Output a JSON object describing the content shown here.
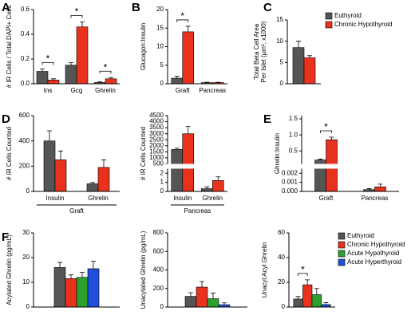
{
  "chart_data": [
    {
      "type": "bar",
      "panel": "A",
      "ylabel": "# IR Cells / Total DAPI+ Cells",
      "categories": [
        "Ins",
        "Gcg",
        "Ghrelin"
      ],
      "series": [
        {
          "color": "#555555",
          "values": [
            0.1,
            0.15,
            0.01
          ],
          "errors": [
            0.02,
            0.02,
            0.005
          ]
        },
        {
          "color": "#e8321e",
          "values": [
            0.03,
            0.46,
            0.04
          ],
          "errors": [
            0.01,
            0.04,
            0.01
          ]
        }
      ],
      "ylim": [
        0,
        0.6
      ],
      "yticks": [
        {
          "value": 0,
          "label": "0.0"
        },
        0.2,
        0.4,
        0.6
      ],
      "annotations": [
        "*",
        "*",
        "*"
      ]
    },
    {
      "type": "bar",
      "panel": "B",
      "ylabel": "Glucagon:Insulin",
      "categories": [
        "Graft",
        "Pancreas"
      ],
      "series": [
        {
          "color": "#555555",
          "values": [
            1.5,
            0.3
          ],
          "errors": [
            0.5,
            0.1
          ]
        },
        {
          "color": "#e8321e",
          "values": [
            14,
            0.3
          ],
          "errors": [
            1.5,
            0.1
          ]
        }
      ],
      "ylim": [
        0,
        20
      ],
      "yticks": [
        0,
        5,
        10,
        15,
        20
      ],
      "annotations": [
        "*"
      ]
    },
    {
      "type": "bar",
      "panel": "C",
      "ylabel": [
        "Total Beta Cell Area",
        "Per Islet (µm², x1000)"
      ],
      "categories": [
        null
      ],
      "series": [
        {
          "name": "Euthyroid",
          "color": "#555555",
          "values": [
            8.5
          ],
          "errors": [
            1.5
          ]
        },
        {
          "name": "Chronic Hypothyroid",
          "color": "#e8321e",
          "values": [
            6.1
          ],
          "errors": [
            0.5
          ]
        }
      ],
      "ylim": [
        0,
        15
      ],
      "yticks": [
        0,
        5,
        10,
        15
      ],
      "legend": "right"
    },
    {
      "type": "bar",
      "panel": "D",
      "ylabel": "# IR Cells Counted",
      "categories": [
        "Insulin",
        "Ghrelin"
      ],
      "group_label": "Graft",
      "series": [
        {
          "color": "#555555",
          "values": [
            400,
            60
          ],
          "errors": [
            80,
            10
          ]
        },
        {
          "color": "#e8321e",
          "values": [
            250,
            190
          ],
          "errors": [
            70,
            60
          ]
        }
      ],
      "ylim": [
        0,
        600
      ],
      "yticks": [
        0,
        200,
        400,
        600
      ]
    },
    {
      "type": "bar",
      "ylabel": "# IR Cells Counted",
      "categories": [
        "Insulin",
        "Ghrelin"
      ],
      "group_label": "Pancreas",
      "series": [
        {
          "color": "#555555",
          "values": [
            1700,
            0.3
          ],
          "errors": [
            100,
            0.2
          ]
        },
        {
          "color": "#e8321e",
          "values": [
            3000,
            1.2
          ],
          "errors": [
            600,
            0.4
          ]
        }
      ],
      "ylim": [
        0,
        4500
      ],
      "ybreak": [
        2.5,
        500
      ],
      "yticks": [
        0,
        1,
        2,
        500,
        1000,
        1500,
        2000,
        2500,
        3000,
        3500,
        4000,
        4500
      ]
    },
    {
      "type": "bar",
      "panel": "E",
      "ylabel": "Ghrelin:Insulin",
      "categories": [
        "Graft",
        "Pancreas"
      ],
      "series": [
        {
          "color": "#555555",
          "values": [
            0.22,
            0.0002
          ],
          "errors": [
            0.03,
            0.0001
          ]
        },
        {
          "color": "#e8321e",
          "values": [
            0.85,
            0.0005
          ],
          "errors": [
            0.08,
            0.0003
          ]
        }
      ],
      "ylim": [
        0,
        1.6
      ],
      "ybreak": [
        0.0025,
        0.1
      ],
      "yticks": [
        {
          "value": 0,
          "label": "0.000"
        },
        0.001,
        0.002,
        0.5,
        {
          "value": 1,
          "label": "1.0"
        },
        1.5
      ],
      "annotations": [
        "*"
      ]
    },
    {
      "type": "bar",
      "panel": "F",
      "ylabel": "Acylated Ghrelin (pg/mL)",
      "categories": [
        null
      ],
      "series": [
        {
          "color": "#555555",
          "values": [
            16
          ],
          "errors": [
            2
          ]
        },
        {
          "color": "#e8321e",
          "values": [
            11.5
          ],
          "errors": [
            1.5
          ]
        },
        {
          "color": "#2ca02c",
          "values": [
            12
          ],
          "errors": [
            2
          ]
        },
        {
          "color": "#1f4fd8",
          "values": [
            15.5
          ],
          "errors": [
            3
          ]
        }
      ],
      "ylim": [
        0,
        30
      ],
      "yticks": [
        0,
        10,
        20,
        30
      ]
    },
    {
      "type": "bar",
      "ylabel": "Unacylated Ghrelin (pg/mL)",
      "categories": [
        null
      ],
      "series": [
        {
          "color": "#555555",
          "values": [
            115
          ],
          "errors": [
            40
          ]
        },
        {
          "color": "#e8321e",
          "values": [
            215
          ],
          "errors": [
            60
          ]
        },
        {
          "color": "#2ca02c",
          "values": [
            90
          ],
          "errors": [
            60
          ]
        },
        {
          "color": "#1f4fd8",
          "values": [
            25
          ],
          "errors": [
            20
          ]
        }
      ],
      "ylim": [
        0,
        800
      ],
      "yticks": [
        0,
        200,
        400,
        600,
        800
      ]
    },
    {
      "type": "bar",
      "ylabel": "Unacyl:Acyl Ghrelin",
      "categories": [
        null
      ],
      "series": [
        {
          "name": "Euthyroid",
          "color": "#555555",
          "values": [
            6.5
          ],
          "errors": [
            2
          ]
        },
        {
          "name": "Chronic Hypothyroid",
          "color": "#e8321e",
          "values": [
            18
          ],
          "errors": [
            4
          ]
        },
        {
          "name": "Acute Hypothyroid",
          "color": "#2ca02c",
          "values": [
            10
          ],
          "errors": [
            5
          ]
        },
        {
          "name": "Acute Hyperthyroid",
          "color": "#1f4fd8",
          "values": [
            2
          ],
          "errors": [
            1.5
          ]
        }
      ],
      "ylim": [
        0,
        60
      ],
      "yticks": [
        0,
        20,
        40,
        60
      ],
      "legend": "right",
      "annotations": [
        "*"
      ]
    }
  ]
}
